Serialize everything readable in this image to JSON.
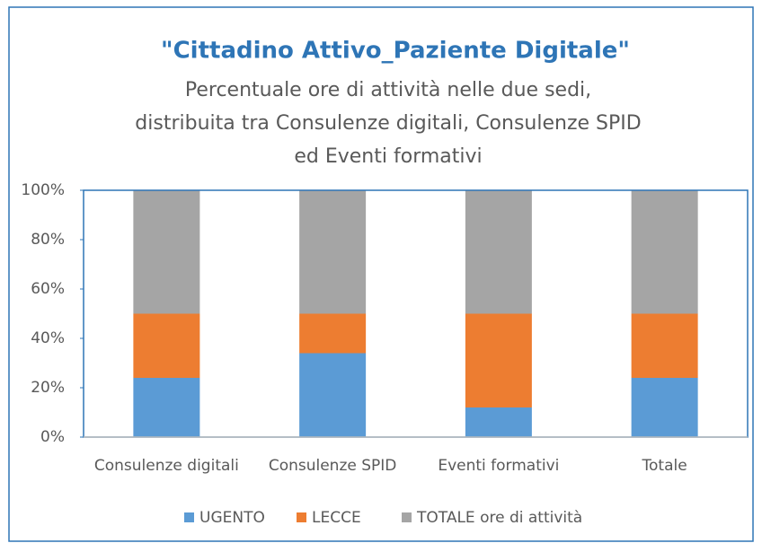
{
  "chart_data": {
    "type": "stacked_bar",
    "title": "\"Cittadino Attivo_Paziente Digitale\"",
    "subtitle": [
      "Percentuale ore di attività nelle due sedi,",
      "distribuita tra Consulenze digitali, Consulenze SPID",
      "ed Eventi formativi"
    ],
    "categories": [
      "Consulenze digitali",
      "Consulenze SPID",
      "Eventi formativi",
      "Totale"
    ],
    "series": [
      {
        "name": "UGENTO",
        "color": "#5b9bd5",
        "values": [
          24,
          34,
          12,
          24
        ]
      },
      {
        "name": "LECCE",
        "color": "#ed7d31",
        "values": [
          26,
          16,
          38,
          26
        ]
      },
      {
        "name": "TOTALE ore di attività",
        "color": "#a5a5a5",
        "values": [
          50,
          50,
          50,
          50
        ]
      }
    ],
    "ylim": [
      0,
      100
    ],
    "yticks": [
      {
        "value": 0,
        "label": "0%"
      },
      {
        "value": 20,
        "label": "20%"
      },
      {
        "value": 40,
        "label": "40%"
      },
      {
        "value": 60,
        "label": "60%"
      },
      {
        "value": 80,
        "label": "80%"
      },
      {
        "value": 100,
        "label": "100%"
      }
    ],
    "legend": "bottom"
  }
}
